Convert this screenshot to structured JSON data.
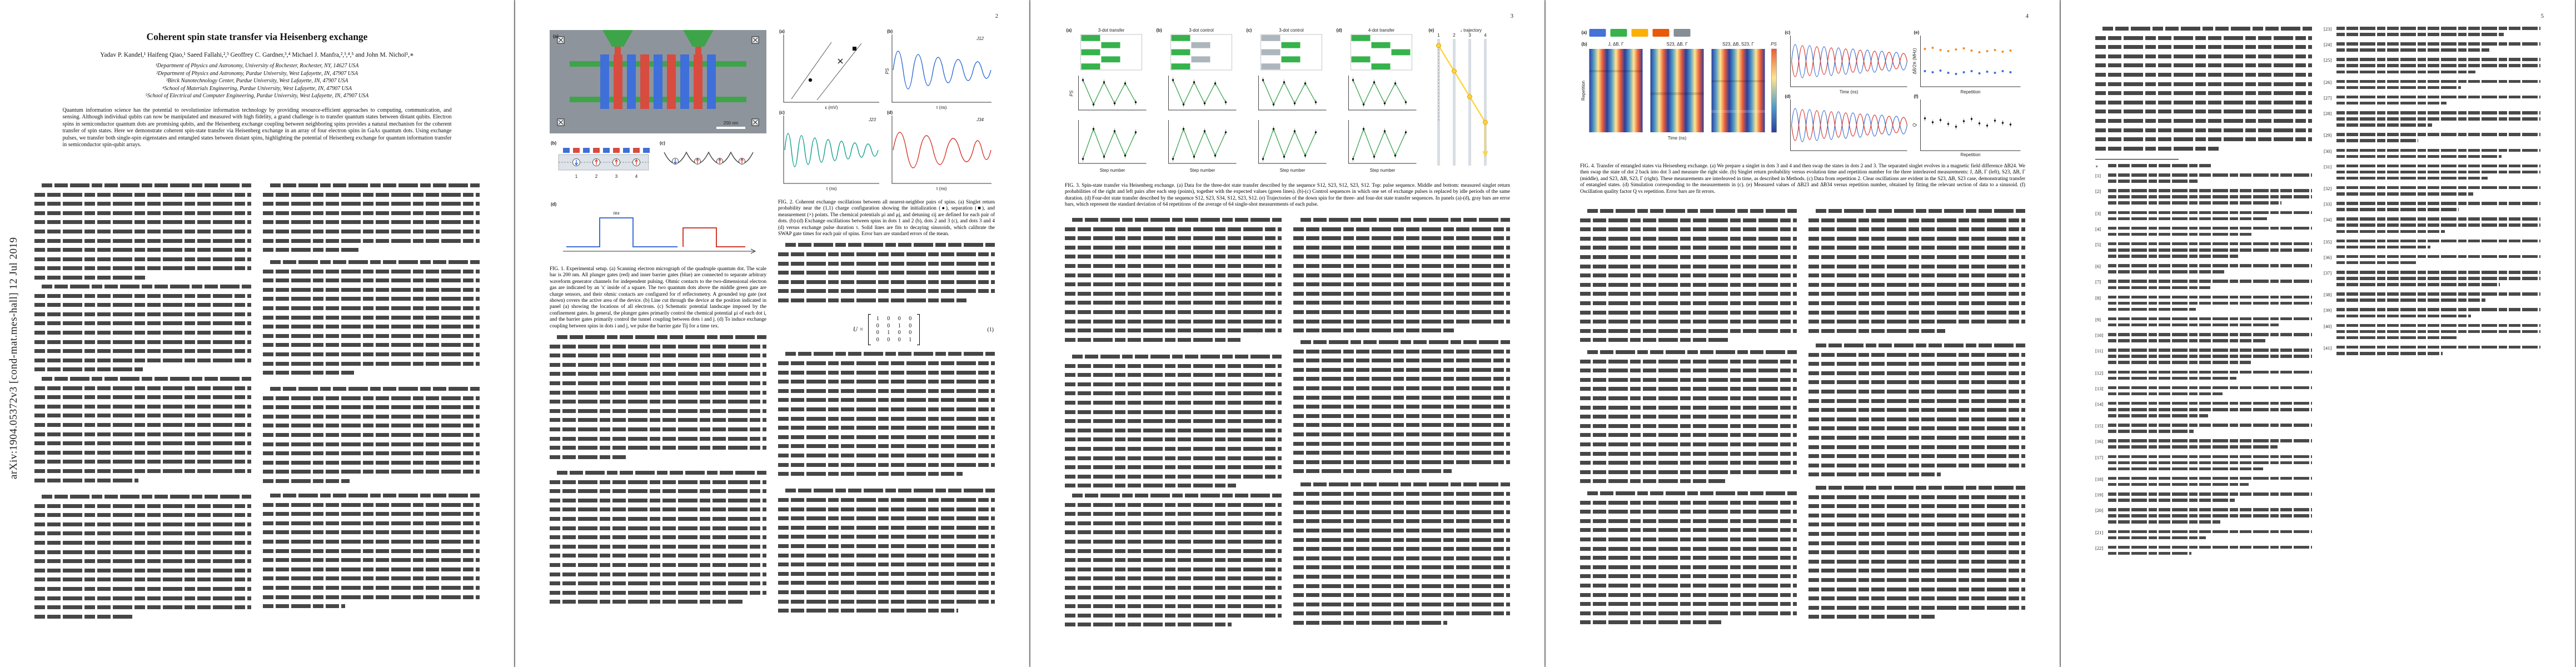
{
  "arxiv_banner": "arXiv:1904.05372v3  [cond-mat.mes-hall]  12 Jul 2019",
  "pages": {
    "p2": "2",
    "p3": "3",
    "p4": "4",
    "p5": "5"
  },
  "paper": {
    "title": "Coherent spin state transfer via Heisenberg exchange",
    "authors": "Yadav P. Kandel,¹ Haifeng Qiao,¹ Saeed Fallahi,²,³ Geoffrey C. Gardner,³,⁴ Michael J. Manfra,²,³,⁴,⁵ and John M. Nichol¹,∗",
    "affiliations": [
      "¹Department of Physics and Astronomy, University of Rochester, Rochester, NY, 14627 USA",
      "²Department of Physics and Astronomy, Purdue University, West Lafayette, IN, 47907 USA",
      "³Birck Nanotechnology Center, Purdue University, West Lafayette, IN, 47907 USA",
      "⁴School of Materials Engineering, Purdue University, West Lafayette, IN, 47907 USA",
      "⁵School of Electrical and Computer Engineering, Purdue University, West Lafayette, IN, 47907 USA"
    ],
    "abstract": "Quantum information science has the potential to revolutionize information technology by providing resource-efficient approaches to computing, communication, and sensing. Although individual qubits can now be manipulated and measured with high fidelity, a grand challenge is to transfer quantum states between distant qubits. Electron spins in semiconductor quantum dots are promising qubits, and the Heisenberg exchange coupling between neighboring spins provides a natural mechanism for the coherent transfer of spin states. Here we demonstrate coherent spin-state transfer via Heisenberg exchange in an array of four electron spins in GaAs quantum dots. Using exchange pulses, we transfer both single-spin eigenstates and entangled states between distant spins, highlighting the potential of Heisenberg exchange for quantum information transfer in semiconductor spin-qubit arrays."
  },
  "figures": {
    "fig1": {
      "caption": "FIG. 1. Experimental setup. (a) Scanning electron micrograph of the quadruple quantum dot. The scale bar is 200 nm. All plunger gates (red) and inner barrier gates (blue) are connected to separate arbitrary waveform generator channels for independent pulsing. Ohmic contacts to the two-dimensional electron gas are indicated by an 'x' inside of a square. The two quantum dots above the middle green gate are charge sensors, and their ohmic contacts are configured for rf reflectometry. A grounded top gate (not shown) covers the active area of the device. (b) Line cut through the device at the position indicated in panel (a) showing the locations of all electrons. (c) Schematic potential landscape imposed by the confinement gates. In general, the plunger gates primarily control the chemical potential μi of each dot i, and the barrier gates primarily control the tunnel coupling between dots i and j. (d) To induce exchange coupling between spins in dots i and j, we pulse the barrier gate Tij for a time τex.",
      "panel_labels": [
        "(a)",
        "(b)",
        "(c)",
        "(d)"
      ],
      "scalebar": "200 nm",
      "dot_numbers": [
        "1",
        "2",
        "3",
        "4"
      ],
      "tau_label": "τex"
    },
    "fig2": {
      "caption": "FIG. 2. Coherent exchange oscillations between all nearest-neighbor pairs of spins. (a) Singlet return probability near the (1,1) charge configuration showing the initialization (●), separation (■), and measurement (×) points. The chemical potentials μi and μj, and detuning εij are defined for each pair of dots. (b)-(d) Exchange oscillations between spins in dots 1 and 2 (b), dots 2 and 3 (c), and dots 3 and 4 (d) versus exchange pulse duration τ. Solid lines are fits to decaying sinusoids, which calibrate the SWAP gate times for each pair of spins. Error bars are standard errors of the mean.",
      "panel_labels": [
        "(a)",
        "(b)",
        "(c)",
        "(d)"
      ],
      "pair_labels": [
        "J12",
        "J23",
        "J34"
      ],
      "axis_x": "τ (ns)",
      "axis_y": "PS",
      "a_xlabel": "ε (mV)"
    },
    "fig3": {
      "caption": "FIG. 3. Spin-state transfer via Heisenberg exchange. (a) Data for the three-dot state transfer described by the sequence S12, S23, S12, S23, S12. Top: pulse sequence. Middle and bottom: measured singlet return probabilities of the right and left pairs after each step (points), together with the expected values (green lines). (b)-(c) Control sequences in which one set of exchange pulses is replaced by idle periods of the same duration. (d) Four-dot state transfer described by the sequence S12, S23, S34, S12, S23, S12. (e) Trajectories of the down spin for the three- and four-dot state transfer sequences. In panels (a)-(d), gray bars are error bars, which represent the standard deviation of 64 repetitions of the average of 64 single-shot measurements of each pulse.",
      "panel_labels": [
        "(a)",
        "(b)",
        "(c)",
        "(d)",
        "(e)"
      ],
      "titles": [
        "3-dot transfer",
        "3-dot control",
        "3-dot control",
        "4-dot transfer",
        "↓ trajectory"
      ],
      "xlabel": "Step number",
      "ylabel": "PS",
      "dots": [
        "1",
        "2",
        "3",
        "4"
      ]
    },
    "fig4": {
      "caption": "FIG. 4. Transfer of entangled states via Heisenberg exchange. (a) We prepare a singlet in dots 3 and 4 and then swap the states in dots 2 and 3. The separated singlet evolves in a magnetic field difference ΔB24. We then swap the state of dot 2 back into dot 3 and measure the right side. (b) Singlet return probability versus evolution time and repetition number for the three interleaved measurements: J, ΔB, Γ (left), S23, ΔB, Γ (middle), and S23, ΔB, S23, Γ (right). These measurements are interleaved in time, as described in Methods. (c) Data from repetition 2. Clear oscillations are evident in the S23, ΔB, S23 case, demonstrating transfer of entangled states. (d) Simulation corresponding to the measurements in (c). (e) Measured values of ΔB23 and ΔB34 versus repetition number, obtained by fitting the relevant section of data to a sinusoid. (f) Oscillation quality factor Q vs repetition. Error bars are fit errors.",
      "panel_labels": [
        "(a)",
        "(b)",
        "(c)",
        "(d)",
        "(e)",
        "(f)"
      ],
      "heatmap_titles": [
        "J, ΔB, Γ",
        "S23, ΔB, Γ",
        "S23, ΔB, S23, Γ"
      ],
      "time_label": "Time (ns)",
      "repetition_label": "Repetition",
      "ylabel_left": "Repetition",
      "colorbar_label": "PS",
      "e_ylabel": "ΔB/2π (MHz)",
      "f_ylabel": "Q"
    }
  },
  "equation": {
    "lhs": "U =",
    "rows": [
      "1 0 0 0",
      "0 0 1 0",
      "0 1 0 0",
      "0 0 0 1"
    ],
    "number": "(1)"
  },
  "references": {
    "symbol": "∗",
    "left_count": 22,
    "right_count": 19
  },
  "palette": {
    "gate_red": "#d84b3f",
    "gate_blue": "#3f6fd8",
    "screen_green": "#3ea44a",
    "data_green": "#2f9e44",
    "curve_blue": "#2f6bd8",
    "curve_teal": "#0f9e8e",
    "curve_red": "#d7342c",
    "heat_low": "#2c3e9e",
    "heat_high": "#e95c38",
    "highlight_yellow": "#ffd43b"
  }
}
